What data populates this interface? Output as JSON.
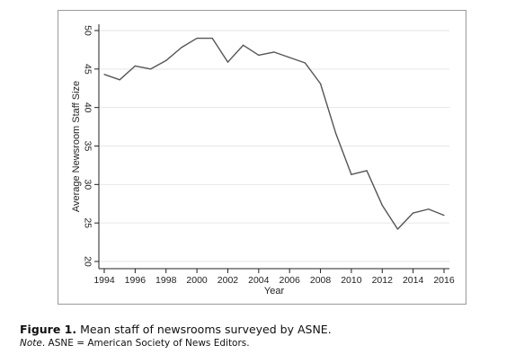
{
  "chart_data": {
    "type": "line",
    "xlabel": "Year",
    "ylabel": "Average Newsroom Staff Size",
    "xlim": [
      1994,
      2016
    ],
    "ylim": [
      20,
      50
    ],
    "x_ticks": [
      "1994",
      "1996",
      "1998",
      "2000",
      "2002",
      "2004",
      "2006",
      "2008",
      "2010",
      "2012",
      "2014",
      "2016"
    ],
    "y_ticks": [
      "20",
      "25",
      "30",
      "35",
      "40",
      "45",
      "50"
    ],
    "grid": "horizontal",
    "series": [
      {
        "x": [
          1994,
          1995,
          1996,
          1997,
          1998,
          1999,
          2000,
          2001,
          2002,
          2003,
          2004,
          2005,
          2006,
          2007,
          2008,
          2009,
          2010,
          2011,
          2012,
          2013,
          2014,
          2015,
          2016
        ],
        "values": [
          44.3,
          43.6,
          45.4,
          45.0,
          46.1,
          47.8,
          49.0,
          49.0,
          45.9,
          48.1,
          46.8,
          47.2,
          46.5,
          45.8,
          43.1,
          36.6,
          31.3,
          31.8,
          27.3,
          24.2,
          26.3,
          26.8,
          26.0
        ]
      }
    ],
    "colors": {
      "line": "#555555",
      "grid": "#e6e6e6",
      "axis": "#222222"
    }
  },
  "caption": {
    "figure_label": "Figure 1.",
    "text": "Mean staff of newsrooms surveyed by ASNE."
  },
  "note": {
    "label": "Note",
    "text": ". ASNE = American Society of News Editors."
  }
}
